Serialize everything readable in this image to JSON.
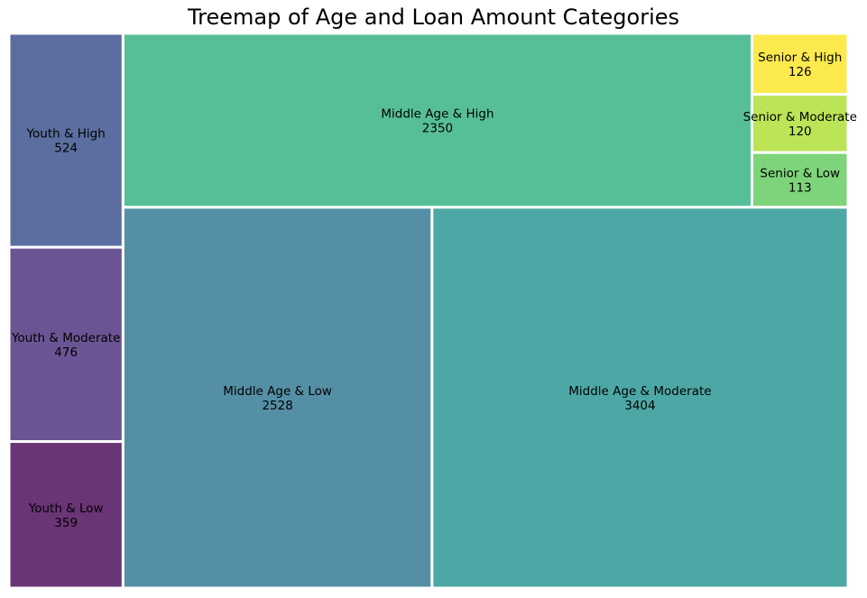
{
  "chart_data": {
    "type": "treemap",
    "title": "Treemap of Age and Loan Amount Categories",
    "items": [
      {
        "label": "Youth & High",
        "value": 524,
        "color": "#5b6e9f"
      },
      {
        "label": "Youth & Moderate",
        "value": 476,
        "color": "#6b5493"
      },
      {
        "label": "Youth & Low",
        "value": 359,
        "color": "#6a3576"
      },
      {
        "label": "Middle Age & High",
        "value": 2350,
        "color": "#57bf98"
      },
      {
        "label": "Middle Age & Low",
        "value": 2528,
        "color": "#558fa5"
      },
      {
        "label": "Middle Age & Moderate",
        "value": 3404,
        "color": "#4da8a5"
      },
      {
        "label": "Senior & High",
        "value": 126,
        "color": "#fce94d"
      },
      {
        "label": "Senior & Moderate",
        "value": 120,
        "color": "#bbe456"
      },
      {
        "label": "Senior & Low",
        "value": 113,
        "color": "#7ed47a"
      }
    ]
  }
}
